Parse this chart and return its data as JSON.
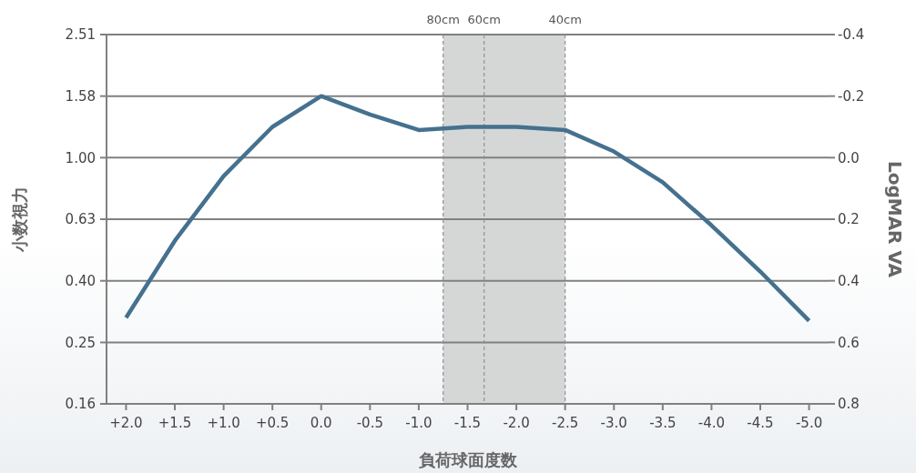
{
  "chart_data": {
    "type": "line",
    "xlabel": "負荷球面度数",
    "ylabel": "小数視力",
    "y2label": "LogMAR VA",
    "x": [
      2.0,
      1.5,
      1.0,
      0.5,
      0.0,
      -0.5,
      -1.0,
      -1.5,
      -2.0,
      -2.5,
      -3.0,
      -3.5,
      -4.0,
      -4.5,
      -5.0
    ],
    "series": [
      {
        "color": "#45718f",
        "axis": "y2",
        "values": [
          0.52,
          0.27,
          0.06,
          -0.1,
          -0.2,
          -0.14,
          -0.09,
          -0.1,
          -0.1,
          -0.09,
          -0.02,
          0.08,
          0.22,
          0.37,
          0.53
        ]
      }
    ],
    "xlim": [
      2.2,
      -5.2
    ],
    "xticks": [
      {
        "value": 2.0,
        "label": "+2.0"
      },
      {
        "value": 1.5,
        "label": "+1.5"
      },
      {
        "value": 1.0,
        "label": "+1.0"
      },
      {
        "value": 0.5,
        "label": "+0.5"
      },
      {
        "value": 0,
        "label": "0.0"
      },
      {
        "value": -0.5,
        "label": "-0.5"
      },
      {
        "value": -1.0,
        "label": "-1.0"
      },
      {
        "value": -1.5,
        "label": "-1.5"
      },
      {
        "value": -2.0,
        "label": "-2.0"
      },
      {
        "value": -2.5,
        "label": "-2.5"
      },
      {
        "value": -3.0,
        "label": "-3.0"
      },
      {
        "value": -3.5,
        "label": "-3.5"
      },
      {
        "value": -4.0,
        "label": "-4.0"
      },
      {
        "value": -4.5,
        "label": "-4.5"
      },
      {
        "value": -5.0,
        "label": "-5.0"
      }
    ],
    "log": "y",
    "ylim": [
      0.1585,
      2.512
    ],
    "yticks": [
      {
        "value": 2.512,
        "label": "2.51"
      },
      {
        "value": 1.585,
        "label": "1.58"
      },
      {
        "value": 1,
        "label": "1.00"
      },
      {
        "value": 0.631,
        "label": "0.63"
      },
      {
        "value": 0.398,
        "label": "0.40"
      },
      {
        "value": 0.251,
        "label": "0.25"
      },
      {
        "value": 0.1585,
        "label": "0.16"
      }
    ],
    "y2lim": [
      0.8,
      -0.4
    ],
    "y2ticks": [
      -0.4,
      -0.2,
      {
        "value": 0,
        "label": "0.0"
      },
      0.2,
      0.4,
      0.6,
      0.8
    ],
    "grid": "y",
    "line_style": "solid",
    "marker": "none",
    "bands": [
      {
        "axis": "x",
        "from": -1.25,
        "to": -2.5,
        "color": "#d5d7d7"
      }
    ],
    "ref_lines": [
      {
        "axis": "x",
        "value": -1.25,
        "label": "80cm",
        "line_style": "dashed",
        "color": "#909090"
      },
      {
        "axis": "x",
        "value": -1.67,
        "label": "60cm",
        "line_style": "dashed",
        "color": "#909090"
      },
      {
        "axis": "x",
        "value": -2.5,
        "label": "40cm",
        "line_style": "dashed",
        "color": "#909090"
      }
    ]
  }
}
